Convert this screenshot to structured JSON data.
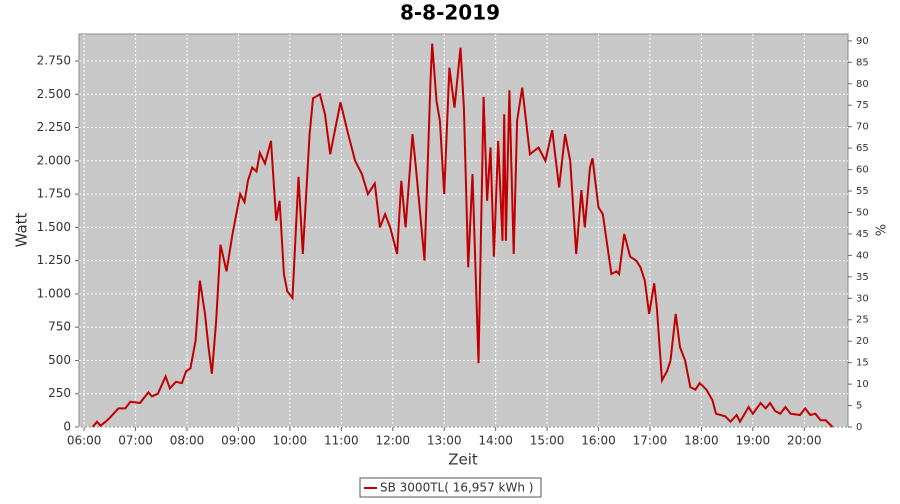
{
  "chart_data": {
    "type": "line",
    "title": "8-8-2019",
    "x_label": "Zeit",
    "y_label": "Watt",
    "y2_label": "%",
    "x": [
      "06:10",
      "06:15",
      "06:19",
      "06:25",
      "06:30",
      "06:40",
      "06:48",
      "06:54",
      "07:05",
      "07:15",
      "07:19",
      "07:26",
      "07:35",
      "07:40",
      "07:47",
      "07:54",
      "07:59",
      "08:04",
      "08:10",
      "08:15",
      "08:21",
      "08:25",
      "08:29",
      "08:34",
      "08:39",
      "08:46",
      "08:53",
      "09:02",
      "09:07",
      "09:11",
      "09:16",
      "09:21",
      "09:25",
      "09:31",
      "09:38",
      "09:44",
      "09:48",
      "09:53",
      "09:57",
      "10:03",
      "10:10",
      "10:15",
      "10:23",
      "10:27",
      "10:35",
      "10:41",
      "10:47",
      "10:59",
      "11:08",
      "11:16",
      "11:24",
      "11:31",
      "11:39",
      "11:45",
      "11:51",
      "11:57",
      "12:05",
      "12:10",
      "12:15",
      "12:23",
      "12:27",
      "12:37",
      "12:44",
      "12:46",
      "12:51",
      "12:55",
      "13:00",
      "13:06",
      "13:12",
      "13:19",
      "13:23",
      "13:28",
      "13:33",
      "13:40",
      "13:46",
      "13:50",
      "13:54",
      "13:58",
      "14:03",
      "14:08",
      "14:10",
      "14:12",
      "14:16",
      "14:21",
      "14:25",
      "14:31",
      "14:40",
      "14:50",
      "14:58",
      "15:06",
      "15:14",
      "15:21",
      "15:27",
      "15:34",
      "15:40",
      "15:44",
      "15:50",
      "15:53",
      "16:00",
      "16:05",
      "16:15",
      "16:21",
      "16:24",
      "16:30",
      "16:37",
      "16:44",
      "16:49",
      "16:54",
      "16:59",
      "17:05",
      "17:08",
      "17:14",
      "17:20",
      "17:24",
      "17:30",
      "17:35",
      "17:41",
      "17:47",
      "17:53",
      "17:58",
      "18:06",
      "18:13",
      "18:17",
      "18:28",
      "18:34",
      "18:41",
      "18:45",
      "18:55",
      "19:00",
      "19:09",
      "19:15",
      "19:20",
      "19:26",
      "19:32",
      "19:38",
      "19:44",
      "19:55",
      "20:01",
      "20:07",
      "20:13",
      "20:19",
      "20:25",
      "20:33"
    ],
    "series": [
      {
        "name": "SB 3000TL( 16,957 kWh )",
        "color": "#c00000",
        "values": [
          0,
          40,
          10,
          40,
          70,
          140,
          140,
          190,
          180,
          260,
          230,
          250,
          380,
          290,
          340,
          330,
          420,
          440,
          650,
          1100,
          850,
          600,
          400,
          800,
          1370,
          1170,
          1450,
          1750,
          1690,
          1850,
          1950,
          1920,
          2060,
          1980,
          2150,
          1550,
          1700,
          1150,
          1020,
          970,
          1880,
          1300,
          2200,
          2470,
          2500,
          2350,
          2050,
          2440,
          2200,
          2000,
          1900,
          1750,
          1830,
          1500,
          1600,
          1500,
          1300,
          1850,
          1500,
          2200,
          1950,
          1250,
          2600,
          2880,
          2450,
          2300,
          1750,
          2700,
          2400,
          2850,
          2400,
          1200,
          1900,
          480,
          2480,
          1700,
          2100,
          1280,
          2150,
          1400,
          2350,
          1400,
          2530,
          1300,
          2300,
          2550,
          2050,
          2100,
          2000,
          2230,
          1800,
          2200,
          2000,
          1300,
          1780,
          1500,
          1950,
          2020,
          1650,
          1600,
          1150,
          1170,
          1150,
          1450,
          1280,
          1250,
          1200,
          1100,
          850,
          1080,
          900,
          350,
          420,
          500,
          850,
          600,
          500,
          300,
          280,
          330,
          280,
          200,
          100,
          80,
          40,
          90,
          40,
          150,
          100,
          180,
          140,
          180,
          120,
          100,
          150,
          100,
          90,
          140,
          90,
          100,
          50,
          50,
          0
        ]
      }
    ],
    "xlim": [
      "05:54",
      "20:51"
    ],
    "xticks": [
      "06:00",
      "07:00",
      "08:00",
      "09:00",
      "10:00",
      "11:00",
      "12:00",
      "13:00",
      "14:00",
      "15:00",
      "16:00",
      "17:00",
      "18:00",
      "19:00",
      "20:00"
    ],
    "ylim": [
      0,
      2953
    ],
    "yticks": [
      0,
      250,
      500,
      750,
      {
        "value": 1000,
        "label": "1.000"
      },
      {
        "value": 1250,
        "label": "1.250"
      },
      {
        "value": 1500,
        "label": "1.500"
      },
      {
        "value": 1750,
        "label": "1.750"
      },
      {
        "value": 2000,
        "label": "2.000"
      },
      {
        "value": 2250,
        "label": "2.250"
      },
      {
        "value": 2500,
        "label": "2.500"
      },
      {
        "value": 2750,
        "label": "2.750"
      }
    ],
    "y2lim": [
      0,
      91.6
    ],
    "y2ticks": [
      0,
      5,
      10,
      15,
      20,
      25,
      30,
      35,
      40,
      45,
      50,
      55,
      60,
      65,
      70,
      75,
      80,
      85,
      90
    ],
    "grid": true,
    "legend": "bottom"
  }
}
